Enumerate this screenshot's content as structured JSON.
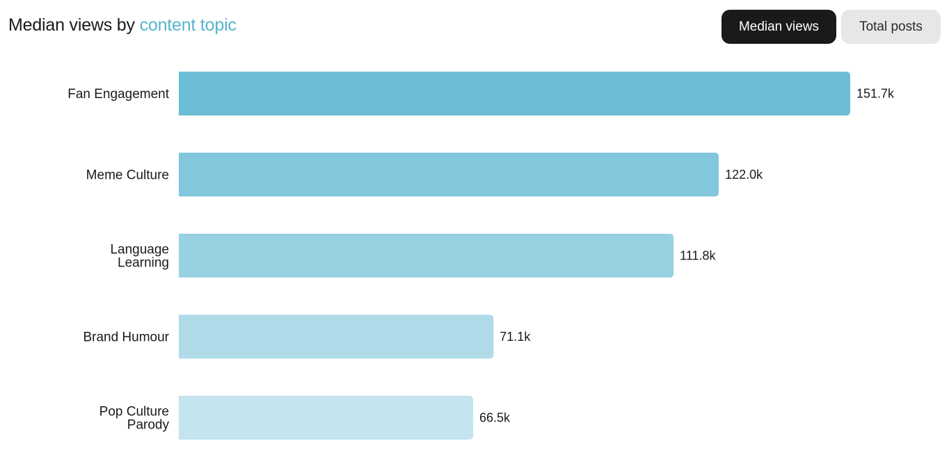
{
  "header": {
    "title_prefix": "Median views by ",
    "title_accent": "content topic",
    "accent_color": "#58b4cc"
  },
  "toggle": {
    "active_label": "Median views",
    "inactive_label": "Total posts"
  },
  "chart_data": {
    "type": "bar",
    "orientation": "horizontal",
    "categories": [
      "Fan Engagement",
      "Meme Culture",
      "Language Learning",
      "Brand Humour",
      "Pop Culture Parody"
    ],
    "values": [
      151700,
      122000,
      111800,
      71100,
      66500
    ],
    "value_labels": [
      "151.7k",
      "122.0k",
      "111.8k",
      "71.1k",
      "66.5k"
    ],
    "colors": [
      "#6cbdd6",
      "#82c7dc",
      "#98d1e2",
      "#afdbe9",
      "#c4e4ee"
    ],
    "grid": false,
    "xlim": [
      0,
      151700
    ]
  }
}
